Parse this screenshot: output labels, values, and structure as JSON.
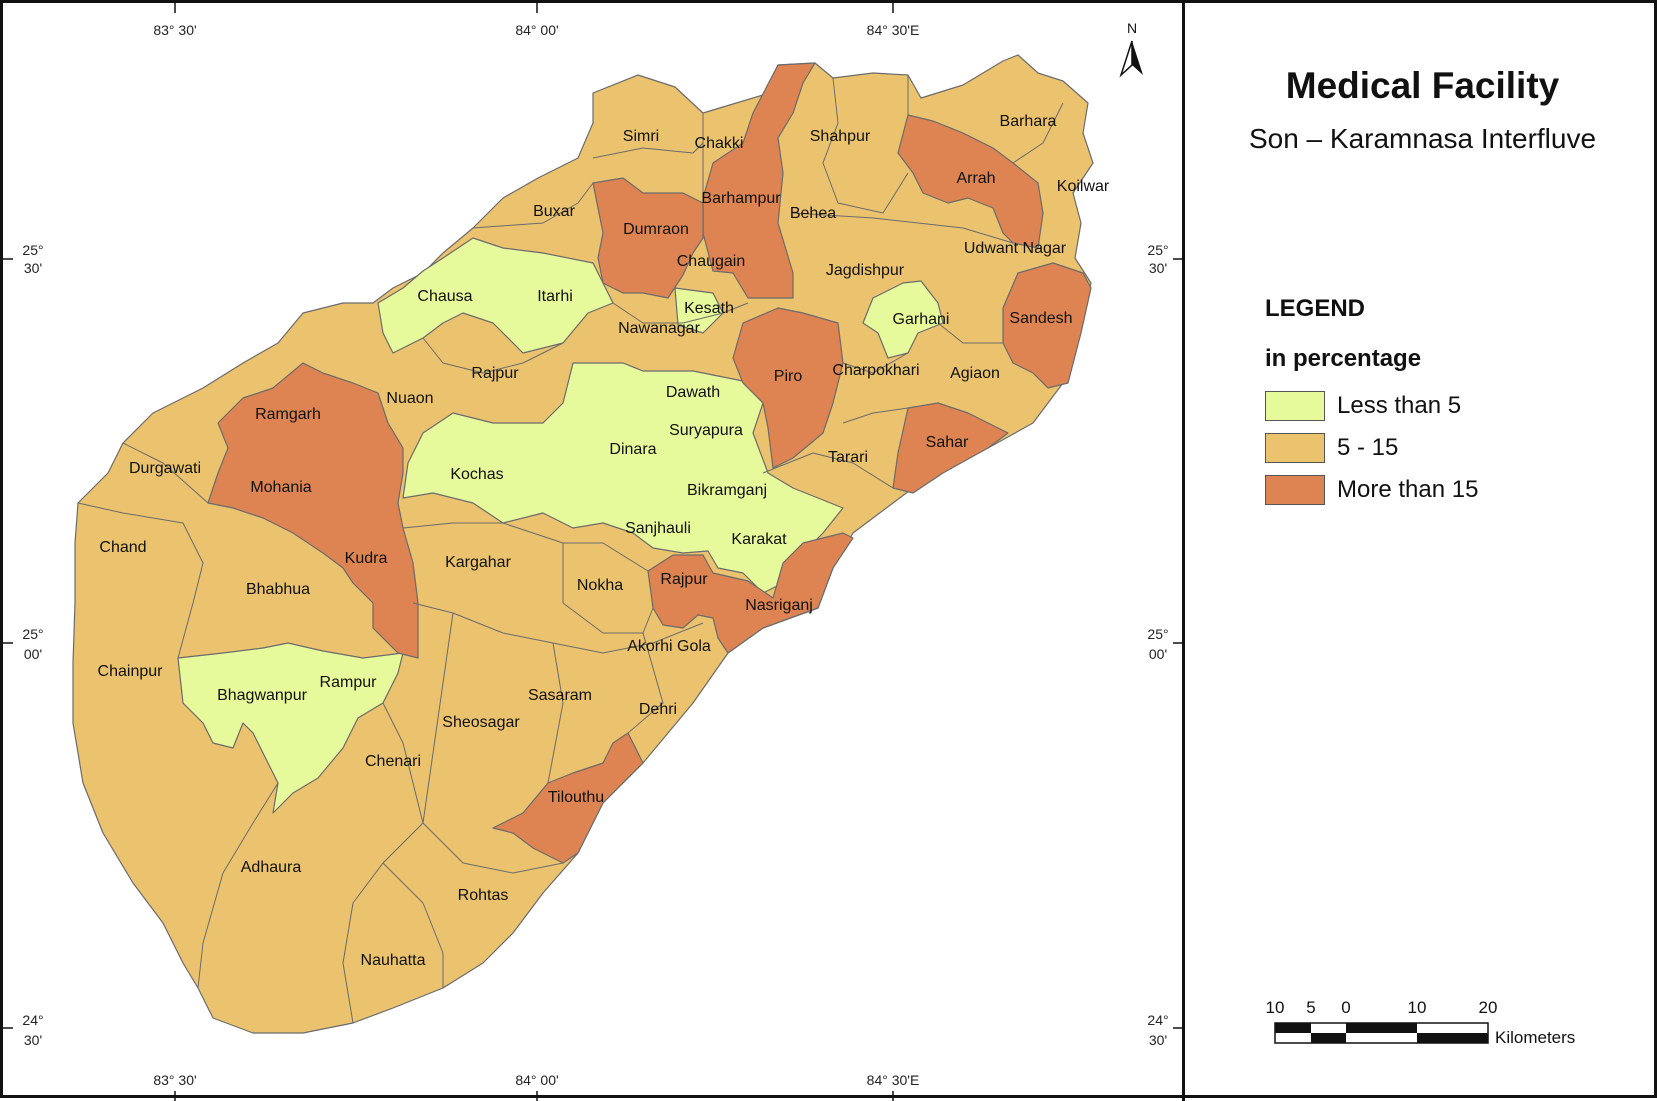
{
  "title": "Medical Facility",
  "subtitle": "Son – Karamnasa Interfluve",
  "north_label": "N",
  "legend": {
    "heading": "LEGEND",
    "subheading": "in percentage",
    "items": [
      {
        "label": "Less than 5",
        "color": "#e6f99b"
      },
      {
        "label": "5 - 15",
        "color": "#ebc36e"
      },
      {
        "label": "More than 15",
        "color": "#dd8452"
      }
    ]
  },
  "coordinates": {
    "top": [
      "83° 30'",
      "84° 00'",
      "84° 30'E"
    ],
    "bottom": [
      "83° 30'",
      "84° 00'",
      "84° 30'E"
    ],
    "left": [
      [
        "25°",
        "30'"
      ],
      [
        "25°",
        "00'"
      ],
      [
        "24°",
        "30'"
      ]
    ],
    "right": [
      [
        "25°",
        "30'"
      ],
      [
        "25°",
        "00'"
      ],
      [
        "24°",
        "30'"
      ]
    ]
  },
  "scale": {
    "ticks": [
      "10",
      "5",
      "0",
      "10",
      "20"
    ],
    "unit": "Kilometers"
  },
  "places": [
    "Simri",
    "Chakki",
    "Shahpur",
    "Barhara",
    "Arrah",
    "Koilwar",
    "Buxar",
    "Dumraon",
    "Barhampur",
    "Behea",
    "Udwant Nagar",
    "Chaugain",
    "Jagdishpur",
    "Chausa",
    "Itarhi",
    "Kesath",
    "Garhani",
    "Sandesh",
    "Nawanagar",
    "Rajpur",
    "Nuaon",
    "Piro",
    "Charpokhari",
    "Agiaon",
    "Dawath",
    "Ramgarh",
    "Suryapura",
    "Durgawati",
    "Dinara",
    "Kochas",
    "Tarari",
    "Sahar",
    "Mohania",
    "Bikramganj",
    "Sanjhauli",
    "Chand",
    "Karakat",
    "Kudra",
    "Kargahar",
    "Bhabhua",
    "Nokha",
    "Rajpur",
    "Nasriganj",
    "Akorhi Gola",
    "Chainpur",
    "Rampur",
    "Bhagwanpur",
    "Sasaram",
    "Dehri",
    "Sheosagar",
    "Chenari",
    "Tilouthu",
    "Adhaura",
    "Rohtas",
    "Nauhatta"
  ]
}
